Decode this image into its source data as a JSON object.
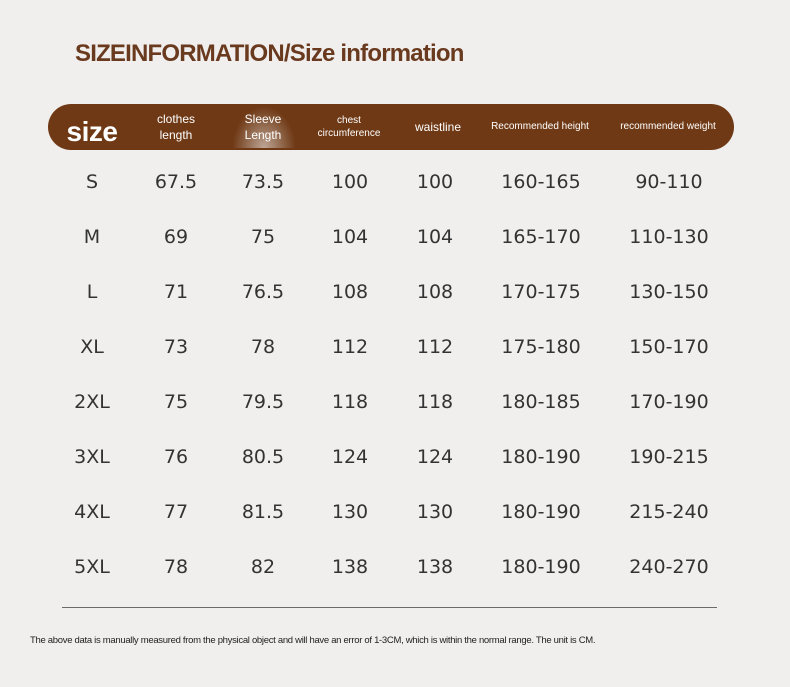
{
  "title": "SIZEINFORMATION/Size information",
  "header": {
    "size": "size",
    "clothes_length": [
      "clothes",
      "length"
    ],
    "sleeve_length": [
      "Sleeve",
      "Length"
    ],
    "chest": [
      "chest",
      "circumference"
    ],
    "waistline": "waistline",
    "height": "Recommended height",
    "weight": "recommended weight"
  },
  "rows": [
    [
      "S",
      "67.5",
      "73.5",
      "100",
      "100",
      "160-165",
      "90-110"
    ],
    [
      "M",
      "69",
      "75",
      "104",
      "104",
      "165-170",
      "110-130"
    ],
    [
      "L",
      "71",
      "76.5",
      "108",
      "108",
      "170-175",
      "130-150"
    ],
    [
      "XL",
      "73",
      "78",
      "112",
      "112",
      "175-180",
      "150-170"
    ],
    [
      "2XL",
      "75",
      "79.5",
      "118",
      "118",
      "180-185",
      "170-190"
    ],
    [
      "3XL",
      "76",
      "80.5",
      "124",
      "124",
      "180-190",
      "190-215"
    ],
    [
      "4XL",
      "77",
      "81.5",
      "130",
      "130",
      "180-190",
      "215-240"
    ],
    [
      "5XL",
      "78",
      "82",
      "138",
      "138",
      "180-190",
      "240-270"
    ]
  ],
  "footnote": "The above data is manually measured from the physical object and will have an error of 1-3CM, which is within the normal range. The unit is CM.",
  "colors": {
    "header_bar": "#6f3915",
    "title": "#6a3a1f",
    "background": "#f0efed"
  }
}
